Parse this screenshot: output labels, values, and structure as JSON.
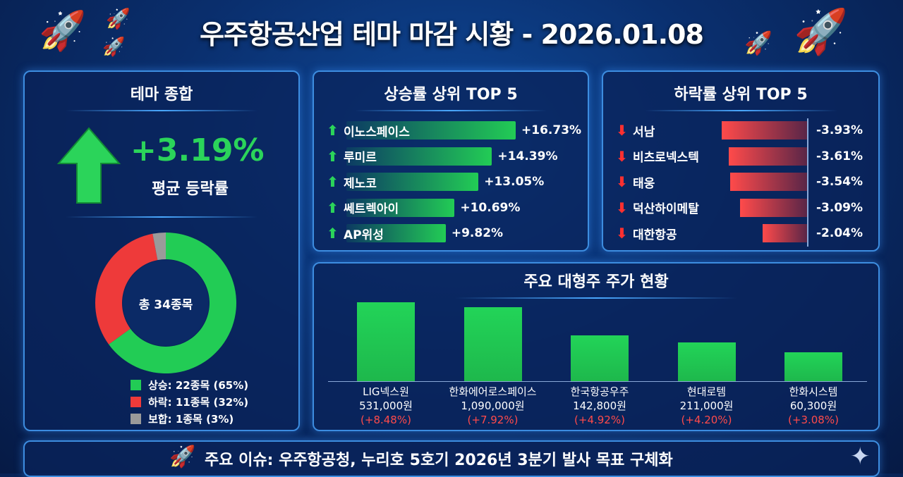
{
  "title": "우주항공산업 테마 마감 시황 - 2026.01.08",
  "summary": {
    "title": "테마 종합",
    "avg_change": "+3.19%",
    "avg_label": "평균 등락률",
    "total": "총 34종목",
    "legend": [
      {
        "label": "상승: 22종목 (65%)",
        "value": 65,
        "color": "#22cc55"
      },
      {
        "label": "하락: 11종목 (32%)",
        "value": 32,
        "color": "#ee3a3a"
      },
      {
        "label": "보합: 1종목 (3%)",
        "value": 3,
        "color": "#9a9a9a"
      }
    ]
  },
  "gainers": {
    "title": "상승률 상위 TOP 5",
    "items": [
      {
        "name": "이노스페이스",
        "change": "+16.73%",
        "value": 16.73
      },
      {
        "name": "루미르",
        "change": "+14.39%",
        "value": 14.39
      },
      {
        "name": "제노코",
        "change": "+13.05%",
        "value": 13.05
      },
      {
        "name": "쎄트렉아이",
        "change": "+10.69%",
        "value": 10.69
      },
      {
        "name": "AP위성",
        "change": "+9.82%",
        "value": 9.82
      }
    ]
  },
  "losers": {
    "title": "하락률 상위 TOP 5",
    "items": [
      {
        "name": "서남",
        "change": "-3.93%",
        "value": 3.93
      },
      {
        "name": "비츠로넥스텍",
        "change": "-3.61%",
        "value": 3.61
      },
      {
        "name": "태웅",
        "change": "-3.54%",
        "value": 3.54
      },
      {
        "name": "덕산하이메탈",
        "change": "-3.09%",
        "value": 3.09
      },
      {
        "name": "대한항공",
        "change": "-2.04%",
        "value": 2.04
      }
    ]
  },
  "chart_data": {
    "type": "bar",
    "title": "주요 대형주 주가 현황",
    "categories": [
      "LIG넥스원",
      "한화에어로스페이스",
      "한국항공우주",
      "현대로템",
      "한화시스템"
    ],
    "prices": [
      "531,000원",
      "1,090,000원",
      "142,800원",
      "211,000원",
      "60,300원"
    ],
    "changes": [
      "(+8.48%)",
      "(+7.92%)",
      "(+4.92%)",
      "(+4.20%)",
      "(+3.08%)"
    ],
    "values": [
      8.48,
      7.92,
      4.92,
      4.2,
      3.08
    ]
  },
  "issue": "주요 이슈: 우주항공청, 누리호 5호기 2026년 3분기 발사 목표 구체화"
}
